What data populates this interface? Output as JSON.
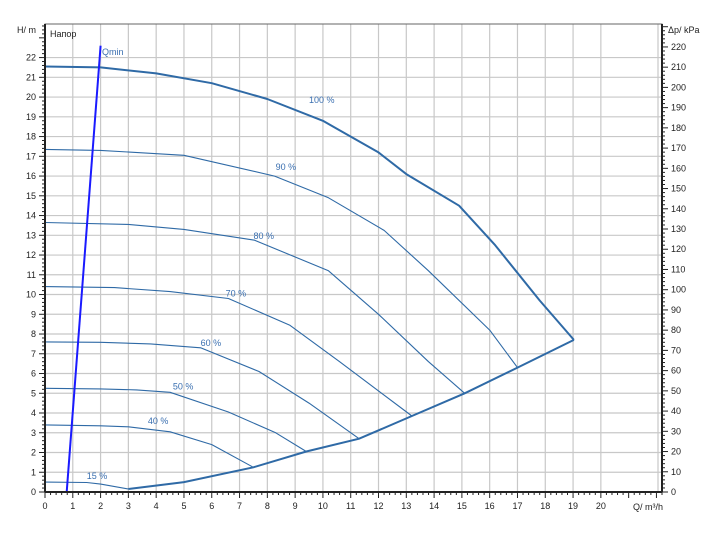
{
  "chart_data": {
    "type": "line",
    "title": "Напор",
    "xlabel": "Q/ m³/h",
    "ylabel": "H/ m",
    "y2label": "Δp/ kPa",
    "xlim": [
      0,
      22.2
    ],
    "ylim": [
      0,
      23.7
    ],
    "y2lim": [
      0,
      220
    ],
    "xticks": [
      0,
      1,
      2,
      3,
      4,
      5,
      6,
      7,
      8,
      9,
      10,
      11,
      12,
      13,
      14,
      15,
      16,
      17,
      18,
      19,
      20
    ],
    "yticks": [
      0,
      1,
      2,
      3,
      4,
      5,
      6,
      7,
      8,
      9,
      10,
      11,
      12,
      13,
      14,
      15,
      16,
      17,
      18,
      19,
      20,
      21,
      22
    ],
    "y2ticks": [
      0,
      10,
      20,
      30,
      40,
      50,
      60,
      70,
      80,
      90,
      100,
      110,
      120,
      130,
      140,
      150,
      160,
      170,
      180,
      190,
      200,
      210,
      220
    ],
    "grid": true,
    "colors": {
      "curve": "#2f6aa6",
      "qmin": "#1a1aff",
      "grid": "#c8c8c8"
    },
    "series": [
      {
        "name": "100 %",
        "label_at": [
          9.5,
          19.7
        ],
        "points": [
          [
            0,
            21.55
          ],
          [
            2,
            21.5
          ],
          [
            4,
            21.2
          ],
          [
            6,
            20.7
          ],
          [
            8,
            19.9
          ],
          [
            10,
            18.8
          ],
          [
            12,
            17.2
          ],
          [
            13,
            16.1
          ],
          [
            14.9,
            14.5
          ],
          [
            16.2,
            12.5
          ],
          [
            17.8,
            9.7
          ],
          [
            19.03,
            7.7
          ]
        ]
      },
      {
        "name": "90 %",
        "label_at": [
          8.3,
          16.3
        ],
        "points": [
          [
            0,
            17.35
          ],
          [
            2,
            17.3
          ],
          [
            5,
            17.05
          ],
          [
            8.26,
            16.0
          ],
          [
            10.2,
            14.9
          ],
          [
            12.2,
            13.25
          ],
          [
            13.8,
            11.2
          ],
          [
            16,
            8.2
          ],
          [
            17,
            6.3
          ]
        ]
      },
      {
        "name": "80 %",
        "label_at": [
          7.5,
          12.8
        ],
        "points": [
          [
            0,
            13.65
          ],
          [
            3,
            13.55
          ],
          [
            5,
            13.3
          ],
          [
            7.54,
            12.75
          ],
          [
            10.2,
            11.2
          ],
          [
            12,
            9.0
          ],
          [
            13.8,
            6.6
          ],
          [
            15.1,
            5.0
          ]
        ]
      },
      {
        "name": "70 %",
        "label_at": [
          6.5,
          9.9
        ],
        "points": [
          [
            0,
            10.4
          ],
          [
            2.5,
            10.35
          ],
          [
            4.5,
            10.15
          ],
          [
            6.6,
            9.8
          ],
          [
            8.8,
            8.45
          ],
          [
            10.6,
            6.6
          ],
          [
            13.2,
            3.85
          ]
        ]
      },
      {
        "name": "60 %",
        "label_at": [
          5.6,
          7.4
        ],
        "points": [
          [
            0,
            7.6
          ],
          [
            2,
            7.58
          ],
          [
            3.8,
            7.5
          ],
          [
            5.6,
            7.3
          ],
          [
            7.7,
            6.1
          ],
          [
            9.5,
            4.5
          ],
          [
            11.3,
            2.7
          ]
        ]
      },
      {
        "name": "50 %",
        "label_at": [
          4.6,
          5.2
        ],
        "points": [
          [
            0,
            5.25
          ],
          [
            2,
            5.22
          ],
          [
            3.3,
            5.17
          ],
          [
            4.5,
            5.05
          ],
          [
            6.6,
            4.05
          ],
          [
            8.3,
            3.0
          ],
          [
            9.4,
            2.05
          ]
        ]
      },
      {
        "name": "40 %",
        "label_at": [
          3.7,
          3.45
        ],
        "points": [
          [
            0,
            3.4
          ],
          [
            2,
            3.35
          ],
          [
            3,
            3.3
          ],
          [
            4.5,
            3.05
          ],
          [
            6,
            2.4
          ],
          [
            7.5,
            1.25
          ]
        ]
      },
      {
        "name": "15 %",
        "label_at": [
          1.5,
          0.65
        ],
        "points": [
          [
            0,
            0.5
          ],
          [
            1.5,
            0.48
          ],
          [
            2,
            0.4
          ],
          [
            3,
            0.15
          ]
        ]
      }
    ],
    "system_curve": {
      "points": [
        [
          3,
          0.15
        ],
        [
          5,
          0.5
        ],
        [
          7.5,
          1.25
        ],
        [
          9.4,
          2.05
        ],
        [
          11.3,
          2.7
        ],
        [
          13.2,
          3.85
        ],
        [
          15.1,
          5.0
        ],
        [
          17,
          6.3
        ],
        [
          19.03,
          7.7
        ]
      ]
    },
    "qmin": {
      "name": "Qmin",
      "points": [
        [
          0.78,
          0
        ],
        [
          2,
          22.6
        ]
      ]
    }
  }
}
